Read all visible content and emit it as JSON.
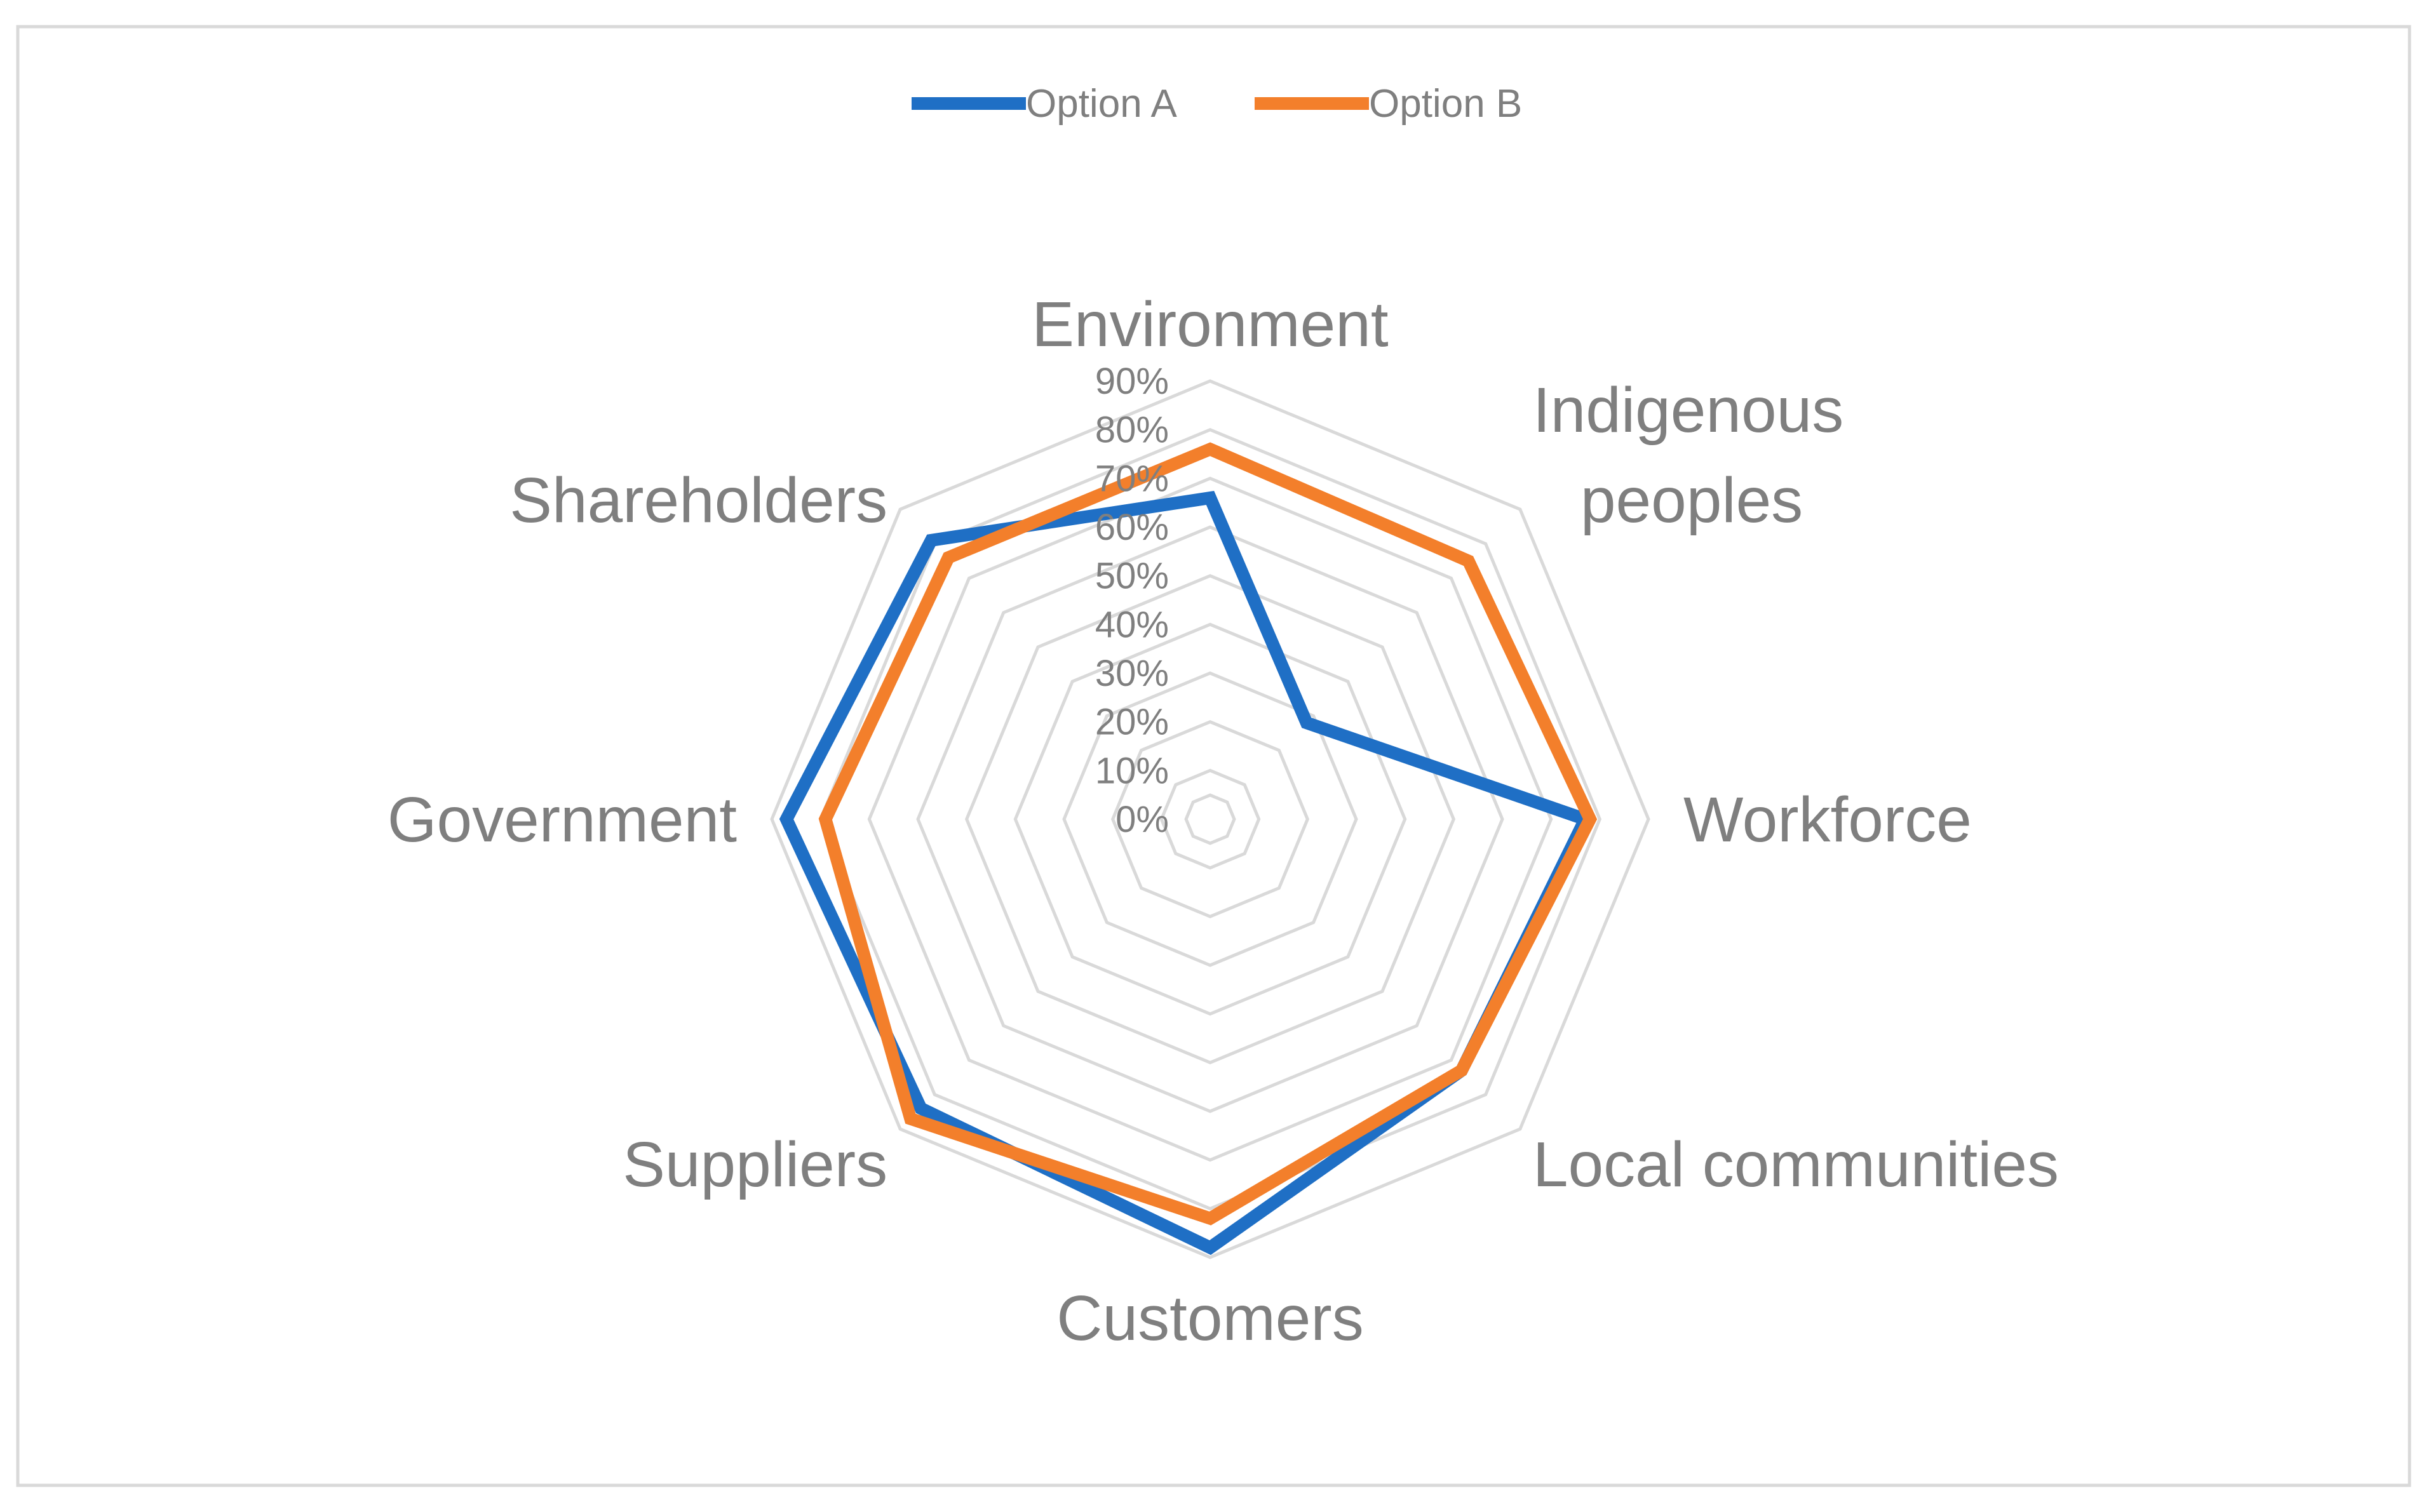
{
  "chart_data": {
    "type": "radar",
    "categories": [
      "Environment",
      "Indigenous peoples",
      "Workforce",
      "Local communities",
      "Customers",
      "Suppliers",
      "Government",
      "Shareholders"
    ],
    "category_label_lines": [
      [
        "Environment"
      ],
      [
        "Indigenous",
        "peoples"
      ],
      [
        "Workforce"
      ],
      [
        "Local communities"
      ],
      [
        "Customers"
      ],
      [
        "Suppliers"
      ],
      [
        "Government"
      ],
      [
        "Shareholders"
      ]
    ],
    "series": [
      {
        "name": "Option A",
        "color": "#1f6fc5",
        "values": [
          0.66,
          0.28,
          0.77,
          0.73,
          0.88,
          0.84,
          0.87,
          0.81
        ]
      },
      {
        "name": "Option B",
        "color": "#f37f2b",
        "values": [
          0.76,
          0.75,
          0.78,
          0.73,
          0.82,
          0.87,
          0.79,
          0.76
        ]
      }
    ],
    "r_ticks": [
      "0%",
      "10%",
      "20%",
      "30%",
      "40%",
      "50%",
      "60%",
      "70%",
      "80%",
      "90%"
    ],
    "r_range": [
      0,
      0.9
    ],
    "grid": true,
    "legend_position": "top-center"
  }
}
